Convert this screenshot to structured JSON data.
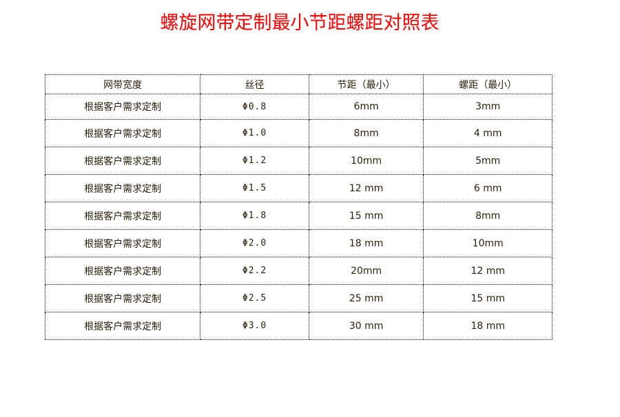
{
  "title": "螺旋网带定制最小节距螺距对照表",
  "colors": {
    "title": "#ff0000",
    "text": "#2a1e0a"
  },
  "table": {
    "headers": [
      "网带宽度",
      "丝径",
      "节距（最小）",
      "螺距（最小）"
    ],
    "rows": [
      [
        "根据客户需求定制",
        "Φ0.8",
        "6mm",
        "3mm"
      ],
      [
        "根据客户需求定制",
        "Φ1.0",
        "8mm",
        "4 mm"
      ],
      [
        "根据客户需求定制",
        "Φ1.2",
        "10mm",
        "5mm"
      ],
      [
        "根据客户需求定制",
        "Φ1.5",
        "12 mm",
        "6 mm"
      ],
      [
        "根据客户需求定制",
        "Φ1.8",
        "15 mm",
        "8mm"
      ],
      [
        "根据客户需求定制",
        "Φ2.0",
        "18 mm",
        "10mm"
      ],
      [
        "根据客户需求定制",
        "Φ2.2",
        "20mm",
        "12 mm"
      ],
      [
        "根据客户需求定制",
        "Φ2.5",
        "25 mm",
        "15 mm"
      ],
      [
        "根据客户需求定制",
        "Φ3.0",
        "30 mm",
        "18 mm"
      ]
    ]
  }
}
